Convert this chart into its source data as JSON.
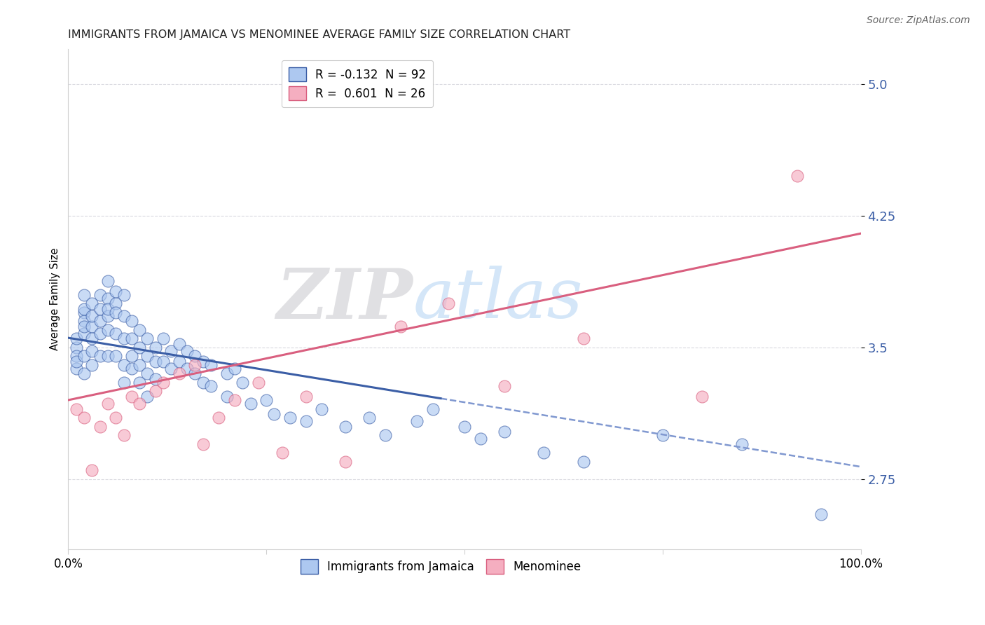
{
  "title": "IMMIGRANTS FROM JAMAICA VS MENOMINEE AVERAGE FAMILY SIZE CORRELATION CHART",
  "source": "Source: ZipAtlas.com",
  "ylabel": "Average Family Size",
  "y_ticks": [
    2.75,
    3.5,
    4.25,
    5.0
  ],
  "xmin": 0.0,
  "xmax": 100.0,
  "ymin": 2.35,
  "ymax": 5.2,
  "legend1_label": "R = -0.132  N = 92",
  "legend2_label": "R =  0.601  N = 26",
  "legend1_color": "#adc8f0",
  "legend2_color": "#f5aec0",
  "trend1_color": "#3b5ea6",
  "trend2_color": "#d95f7f",
  "dashed_color": "#8098d0",
  "watermark_zip": "ZIP",
  "watermark_atlas": "atlas",
  "title_fontsize": 11.5,
  "axis_label_fontsize": 10.5,
  "tick_fontsize": 12,
  "source_fontsize": 10,
  "legend_fontsize": 12,
  "blue_trend_x0": 0,
  "blue_trend_x1": 100,
  "blue_trend_y0": 3.555,
  "blue_trend_y1": 2.82,
  "blue_solid_end_x": 47,
  "pink_trend_x0": 0,
  "pink_trend_x1": 100,
  "pink_trend_y0": 3.2,
  "pink_trend_y1": 4.15,
  "blue_x": [
    1,
    1,
    1,
    1,
    1,
    2,
    2,
    2,
    2,
    2,
    2,
    2,
    2,
    3,
    3,
    3,
    3,
    3,
    3,
    4,
    4,
    4,
    4,
    4,
    5,
    5,
    5,
    5,
    5,
    5,
    6,
    6,
    6,
    6,
    6,
    7,
    7,
    7,
    7,
    7,
    8,
    8,
    8,
    8,
    9,
    9,
    9,
    9,
    10,
    10,
    10,
    10,
    11,
    11,
    11,
    12,
    12,
    13,
    13,
    14,
    14,
    15,
    15,
    16,
    16,
    17,
    17,
    18,
    18,
    20,
    20,
    21,
    22,
    23,
    25,
    26,
    28,
    30,
    32,
    35,
    38,
    40,
    44,
    46,
    50,
    52,
    55,
    60,
    65,
    75,
    85,
    95
  ],
  "blue_y": [
    3.5,
    3.45,
    3.38,
    3.42,
    3.55,
    3.7,
    3.65,
    3.58,
    3.72,
    3.8,
    3.62,
    3.45,
    3.35,
    3.62,
    3.55,
    3.68,
    3.75,
    3.48,
    3.4,
    3.72,
    3.65,
    3.8,
    3.58,
    3.45,
    3.68,
    3.78,
    3.88,
    3.72,
    3.6,
    3.45,
    3.75,
    3.82,
    3.7,
    3.58,
    3.45,
    3.8,
    3.68,
    3.55,
    3.4,
    3.3,
    3.65,
    3.55,
    3.45,
    3.38,
    3.6,
    3.5,
    3.4,
    3.3,
    3.55,
    3.45,
    3.35,
    3.22,
    3.5,
    3.42,
    3.32,
    3.55,
    3.42,
    3.48,
    3.38,
    3.52,
    3.42,
    3.48,
    3.38,
    3.45,
    3.35,
    3.42,
    3.3,
    3.4,
    3.28,
    3.35,
    3.22,
    3.38,
    3.3,
    3.18,
    3.2,
    3.12,
    3.1,
    3.08,
    3.15,
    3.05,
    3.1,
    3.0,
    3.08,
    3.15,
    3.05,
    2.98,
    3.02,
    2.9,
    2.85,
    3.0,
    2.95,
    2.55
  ],
  "pink_x": [
    1,
    2,
    3,
    4,
    5,
    6,
    7,
    8,
    9,
    11,
    12,
    14,
    16,
    17,
    19,
    21,
    24,
    27,
    30,
    35,
    42,
    48,
    55,
    65,
    80,
    92
  ],
  "pink_y": [
    3.15,
    3.1,
    2.8,
    3.05,
    3.18,
    3.1,
    3.0,
    3.22,
    3.18,
    3.25,
    3.3,
    3.35,
    3.4,
    2.95,
    3.1,
    3.2,
    3.3,
    2.9,
    3.22,
    2.85,
    3.62,
    3.75,
    3.28,
    3.55,
    3.22,
    4.48
  ]
}
